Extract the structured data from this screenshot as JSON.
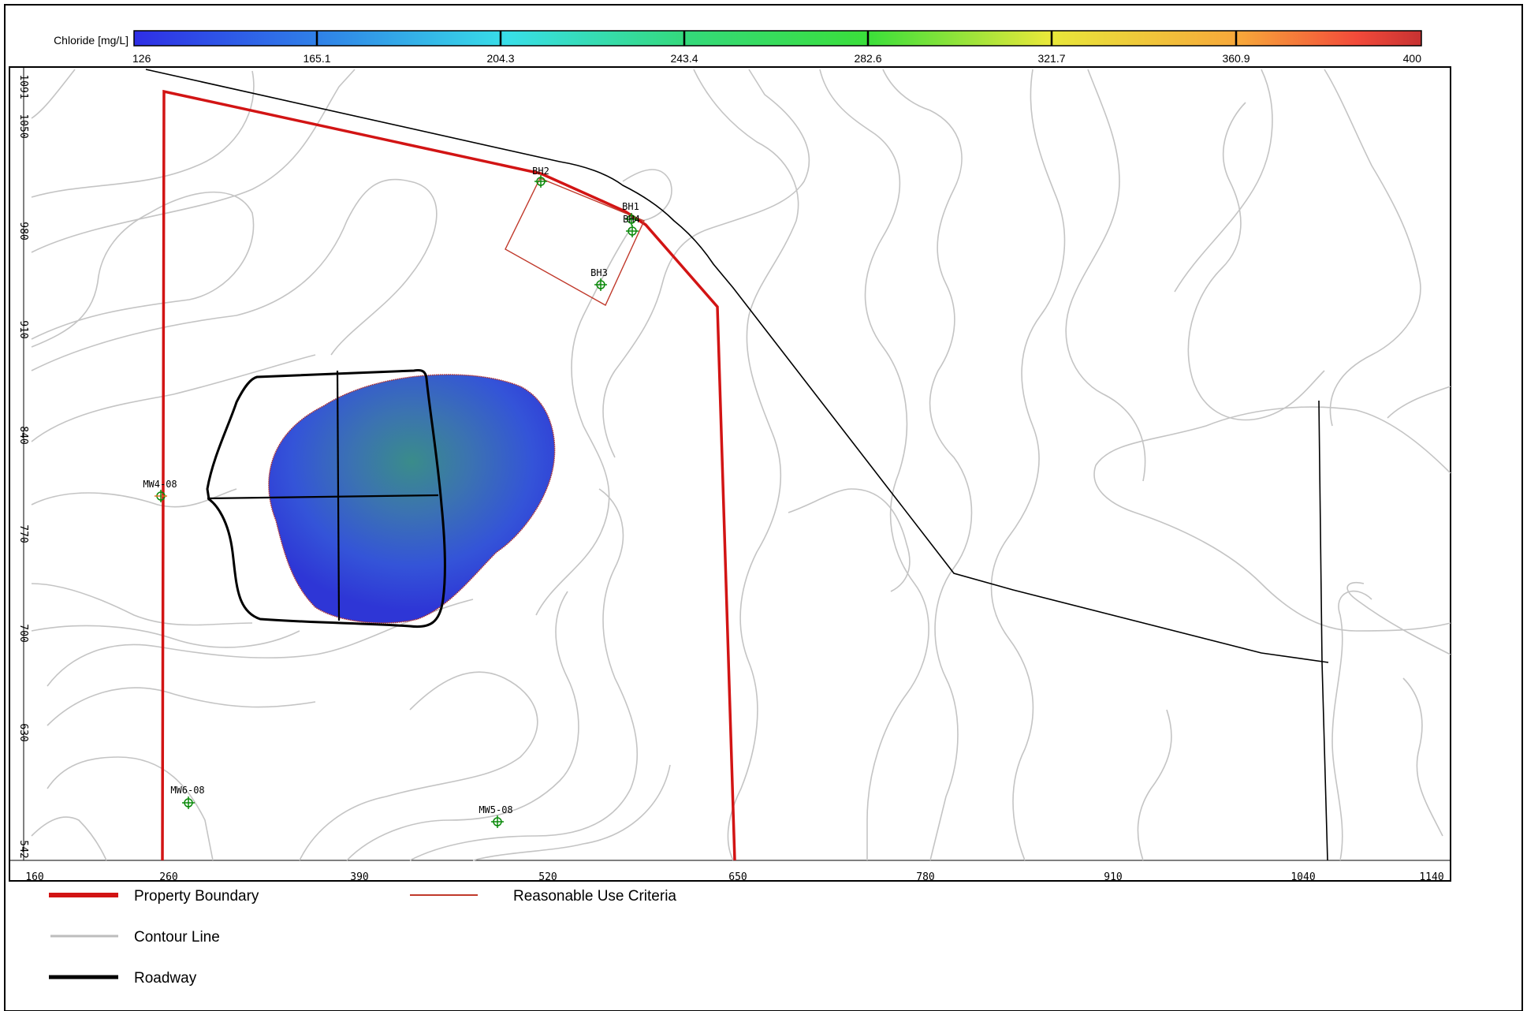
{
  "colorbar": {
    "label": "Chloride [mg/L]",
    "ticks": [
      "126",
      "165.1",
      "204.3",
      "243.4",
      "282.6",
      "321.7",
      "360.9",
      "400"
    ],
    "colors": [
      "#2e2ee6",
      "#2f7fe8",
      "#38dfe8",
      "#34d97a",
      "#3adf3a",
      "#e8e83a",
      "#f7a63a",
      "#f24a3a",
      "#c73232"
    ]
  },
  "axes": {
    "x_ticks": [
      "160",
      "260",
      "390",
      "520",
      "650",
      "780",
      "910",
      "1040",
      "1140"
    ],
    "y_ticks": [
      "1091",
      "1050",
      "980",
      "910",
      "840",
      "770",
      "700",
      "630",
      "542"
    ]
  },
  "wells": [
    {
      "name": "BH2"
    },
    {
      "name": "BH1"
    },
    {
      "name": "BH4"
    },
    {
      "name": "BH3"
    },
    {
      "name": "MW4-08"
    },
    {
      "name": "MW6-08"
    },
    {
      "name": "MW5-08"
    }
  ],
  "legend": {
    "property_boundary": "Property Boundary",
    "reasonable_use": "Reasonable Use Criteria",
    "contour_line": "Contour Line",
    "roadway": "Roadway"
  },
  "colors": {
    "property_boundary": "#cc1010",
    "reasonable_use": "#c0392b",
    "contour_line": "#bdbdbd",
    "roadway": "#000000"
  }
}
